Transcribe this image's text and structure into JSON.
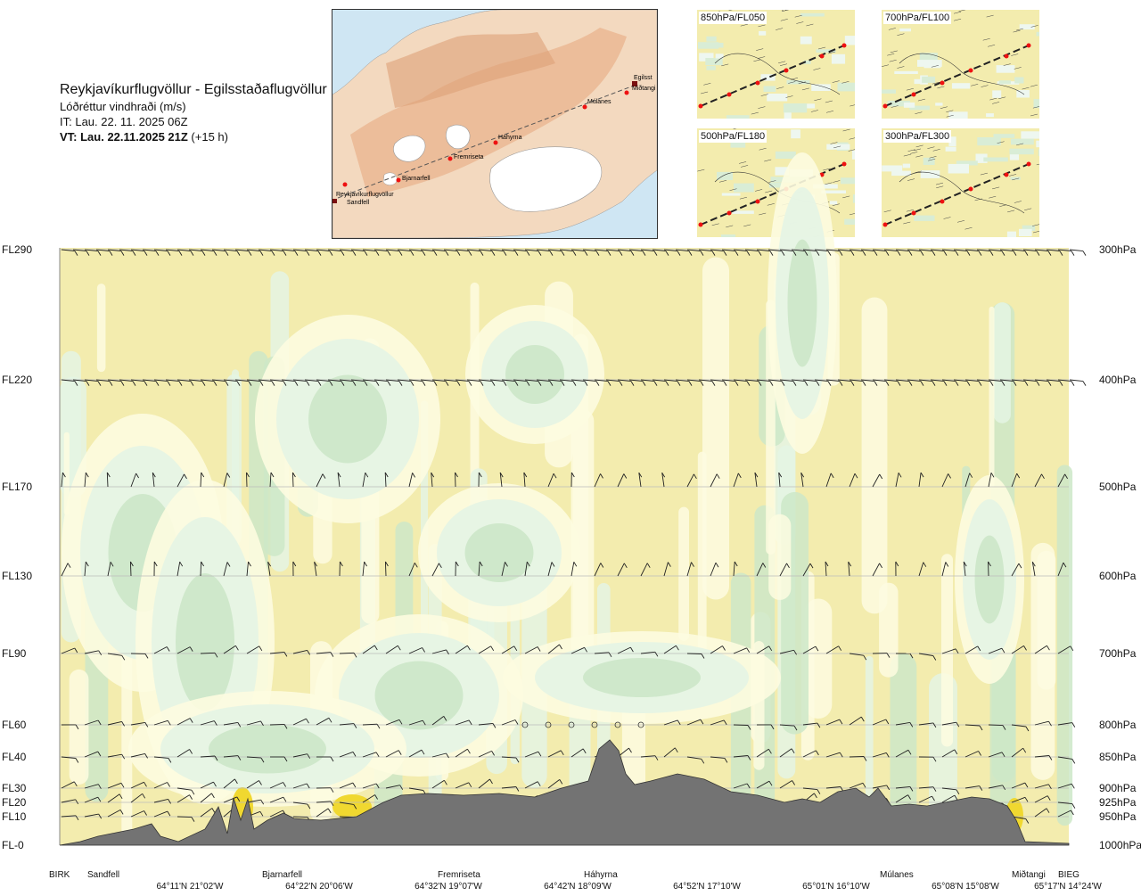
{
  "header": {
    "route": "Reykjavíkurflugvöllur - Egilsstaðaflugvöllur",
    "parameter": "Lóðréttur vindhraði (m/s)",
    "issue_time": "IT: Lau. 22. 11. 2025 06Z",
    "valid_time": "VT: Lau. 22.11.2025 21Z",
    "valid_offset": " (+15 h)"
  },
  "map": {
    "places": [
      "Egilsst",
      "Miðtangi",
      "Múlanes",
      "Háhyrna",
      "Fremriseta",
      "Bjarnarfell",
      "Reykjavíkurflugvöllur",
      "Sandfell"
    ]
  },
  "panels": [
    {
      "label": "850hPa/FL050"
    },
    {
      "label": "700hPa/FL100"
    },
    {
      "label": "500hPa/FL180"
    },
    {
      "label": "300hPa/FL300"
    }
  ],
  "levels": [
    {
      "fl": "FL290",
      "hpa": "300hPa"
    },
    {
      "fl": "FL220",
      "hpa": "400hPa"
    },
    {
      "fl": "FL170",
      "hpa": "500hPa"
    },
    {
      "fl": "FL130",
      "hpa": "600hPa"
    },
    {
      "fl": "FL90",
      "hpa": "700hPa"
    },
    {
      "fl": "FL60",
      "hpa": "800hPa"
    },
    {
      "fl": "FL40",
      "hpa": "850hPa"
    },
    {
      "fl": "FL30",
      "hpa": "900hPa"
    },
    {
      "fl": "FL20",
      "hpa": "925hPa"
    },
    {
      "fl": "FL10",
      "hpa": "950hPa"
    },
    {
      "fl": "FL-0",
      "hpa": "1000hPa"
    }
  ],
  "stations": [
    "BIRK",
    "Sandfell",
    "Bjarnarfell",
    "Fremriseta",
    "Háhyrna",
    "Múlanes",
    "Miðtangi",
    "BIEG"
  ],
  "coords": [
    "64°11'N 21°02'W",
    "64°22'N 20°06'W",
    "64°32'N 19°07'W",
    "64°42'N 18°09'W",
    "64°52'N 17°10'W",
    "65°01'N 16°10'W",
    "65°08'N 15°08'W",
    "65°17'N 14°24'W"
  ],
  "colors": {
    "background_weak": "#f3ecae",
    "light_positive": "#fdfce0",
    "mint": "#e4f4e4",
    "green": "#cce7c8",
    "yellow_strong": "#f0d830",
    "terrain": "#737373"
  },
  "chart_data": {
    "type": "heatmap",
    "title": "Lóðréttur vindhraði (m/s)",
    "x_stations": [
      "BIRK",
      "Sandfell",
      "Bjarnarfell",
      "Fremriseta",
      "Háhyrna",
      "Múlanes",
      "Miðtangi",
      "BIEG"
    ],
    "y_levels_hpa": [
      300,
      400,
      500,
      600,
      700,
      800,
      850,
      900,
      925,
      950,
      1000
    ],
    "y_levels_fl": [
      "FL290",
      "FL220",
      "FL170",
      "FL130",
      "FL90",
      "FL60",
      "FL40",
      "FL30",
      "FL20",
      "FL10",
      "FL-0"
    ],
    "terrain_profile": "mountain cross-section, highest near Háhyrna"
  }
}
